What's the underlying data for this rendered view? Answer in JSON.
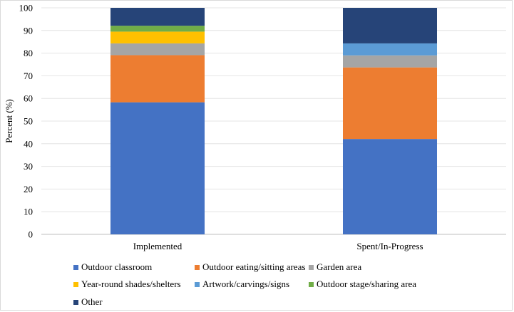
{
  "chart_data": {
    "type": "bar",
    "stacked": true,
    "title": "",
    "xlabel": "",
    "ylabel": "Percent (%)",
    "ylim": [
      0,
      100
    ],
    "yticks": [
      0,
      10,
      20,
      30,
      40,
      50,
      60,
      70,
      80,
      90,
      100
    ],
    "categories": [
      "Implemented",
      "Spent/In-Progress"
    ],
    "series": [
      {
        "name": "Outdoor classroom",
        "color": "#4472C4",
        "values": [
          58.3,
          42.1
        ]
      },
      {
        "name": "Outdoor eating/sitting areas",
        "color": "#ED7D31",
        "values": [
          20.8,
          31.6
        ]
      },
      {
        "name": "Garden area",
        "color": "#A5A5A5",
        "values": [
          5.2,
          5.3
        ]
      },
      {
        "name": "Year-round shades/shelters",
        "color": "#FFC000",
        "values": [
          5.2,
          0
        ]
      },
      {
        "name": "Artwork/carvings/signs",
        "color": "#5B9BD5",
        "values": [
          0,
          5.3
        ]
      },
      {
        "name": "Outdoor stage/sharing area",
        "color": "#70AD47",
        "values": [
          2.6,
          0
        ]
      },
      {
        "name": "Other",
        "color": "#264478",
        "values": [
          7.9,
          15.7
        ]
      }
    ],
    "legend_position": "bottom"
  }
}
